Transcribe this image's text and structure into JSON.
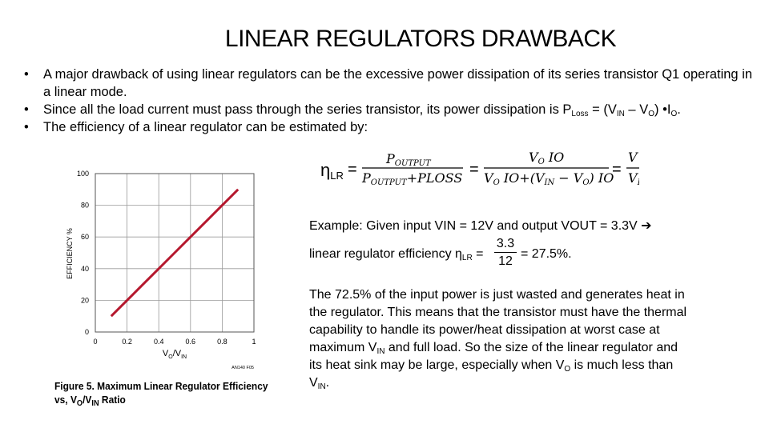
{
  "title": "LINEAR REGULATORS DRAWBACK",
  "bullets": {
    "b1": "A major drawback of using linear regulators can be the excessive power dissipation of its series transistor Q1 operating in a linear mode.",
    "b2_pre": "Since all the load current must pass through the series transistor, its power dissipation is P",
    "b2_sub1": "Loss",
    "b2_mid1": " = (V",
    "b2_sub2": "IN",
    "b2_mid2": " – V",
    "b2_sub3": "O",
    "b2_mid3": ") •I",
    "b2_sub4": "O",
    "b2_end": ".",
    "b3": "The efficiency of a linear regulator can be estimated by:"
  },
  "formula": {
    "eta": "η",
    "eta_sub": "LR",
    "eq": "=",
    "f1_num": "P",
    "f1_num_sub": "OUTPUT",
    "f1_den": "P",
    "f1_den_sub1": "OUTPUT",
    "f1_den_plus": "+PLOSS",
    "f2_num": "V",
    "f2_num_sub": "O",
    "f2_num_io": " IO",
    "f2_den_a": "V",
    "f2_den_sub_a": "O",
    "f2_den_b": " IO+(V",
    "f2_den_sub_b": "IN",
    "f2_den_c": " − V",
    "f2_den_sub_c": "O",
    "f2_den_d": ") IO",
    "f3_num": "V",
    "f3_den": "V",
    "f3_den_sub": "I"
  },
  "chart_data": {
    "type": "line",
    "x": [
      0.1,
      0.2,
      0.3,
      0.4,
      0.5,
      0.6,
      0.7,
      0.8,
      0.9
    ],
    "series": [
      {
        "values": [
          10,
          20,
          30,
          40,
          50,
          60,
          70,
          80,
          90
        ]
      }
    ],
    "xlim": [
      0,
      1
    ],
    "ylim": [
      0,
      100
    ],
    "xticks": [
      "0",
      "0.2",
      "0.4",
      "0.6",
      "0.8",
      "1"
    ],
    "yticks": [
      "0",
      "20",
      "40",
      "60",
      "80",
      "100"
    ],
    "xlabel_main": "V",
    "xlabel_sub1": "O",
    "xlabel_slash": "/V",
    "xlabel_sub2": "IN",
    "ylabel": "EFFICIENCY %",
    "figure_code": "AN140 F05",
    "line_color": "#b5182e",
    "grid": true
  },
  "figure_caption": {
    "line1": "Figure 5. Maximum Linear Regulator Efficiency",
    "line2_pre": "vs, V",
    "line2_sub1": "O",
    "line2_mid": "/V",
    "line2_sub2": "IN",
    "line2_end": " Ratio"
  },
  "example": {
    "text": "Example: Given input VIN = 12V and output VOUT = 3.3V ➔",
    "eff_label": "linear regulator efficiency η",
    "eff_sub": "LR",
    "eff_eq1": " =",
    "num": "3.3",
    "den": "12",
    "eff_result": "= 27.5%."
  },
  "paragraph": {
    "p1": "The 72.5% of the input power is just wasted and generates heat in the regulator. This means that the transistor must have the thermal capability to handle its power/heat dissipation at worst case at maximum V",
    "p1_sub": "IN",
    "p2": " and full load. So the size of the linear regulator and its heat sink may be large, especially when V",
    "p2_sub": "O",
    "p3": " is much less than V",
    "p3_sub": "IN",
    "p4": "."
  }
}
